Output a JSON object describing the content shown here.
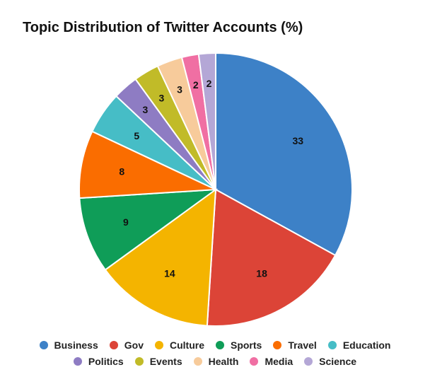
{
  "chart_data": {
    "type": "pie",
    "title": "Topic Distribution of Twitter Accounts (%)",
    "slices": [
      {
        "label": "Business",
        "value": 33,
        "color": "#3d81c7"
      },
      {
        "label": "Gov",
        "value": 18,
        "color": "#dc4437"
      },
      {
        "label": "Culture",
        "value": 14,
        "color": "#f4b400"
      },
      {
        "label": "Sports",
        "value": 9,
        "color": "#0f9d58"
      },
      {
        "label": "Travel",
        "value": 8,
        "color": "#fa6d00"
      },
      {
        "label": "Education",
        "value": 5,
        "color": "#46bdc6"
      },
      {
        "label": "Politics",
        "value": 3,
        "color": "#8e7cc3"
      },
      {
        "label": "Events",
        "value": 3,
        "color": "#c1bb28"
      },
      {
        "label": "Health",
        "value": 3,
        "color": "#f7cb9b"
      },
      {
        "label": "Media",
        "value": 2,
        "color": "#f06fa3"
      },
      {
        "label": "Science",
        "value": 2,
        "color": "#b4a7d6"
      }
    ],
    "legend_position": "bottom"
  }
}
